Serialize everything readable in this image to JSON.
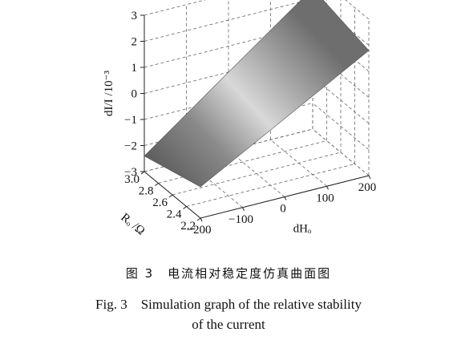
{
  "chart_data": {
    "type": "surface",
    "title": "",
    "zlabel": "dI/I /10⁻³",
    "xlabel": "dHₒ",
    "ylabel": "Rₒ /Ω",
    "x_ticks": [
      "−200",
      "−100",
      "0",
      "100",
      "200"
    ],
    "y_ticks": [
      "3.0",
      "2.8",
      "2.6",
      "2.4",
      "2.2"
    ],
    "z_ticks": [
      "3",
      "2",
      "1",
      "0",
      "−1",
      "−2",
      "−3"
    ],
    "xlim": [
      -200,
      200
    ],
    "ylim": [
      2.2,
      3.0
    ],
    "zlim": [
      -3,
      3
    ],
    "x": [
      -200,
      200
    ],
    "y": [
      2.2,
      3.0
    ],
    "z": [
      [
        -1.8,
        1.8
      ],
      [
        -2.4,
        2.4
      ]
    ],
    "grid": true
  },
  "caption": {
    "cn": "图 3　电流相对稳定度仿真曲面图",
    "en_line1": "Fig. 3　Simulation graph of the relative stability",
    "en_line2": "of the current"
  }
}
